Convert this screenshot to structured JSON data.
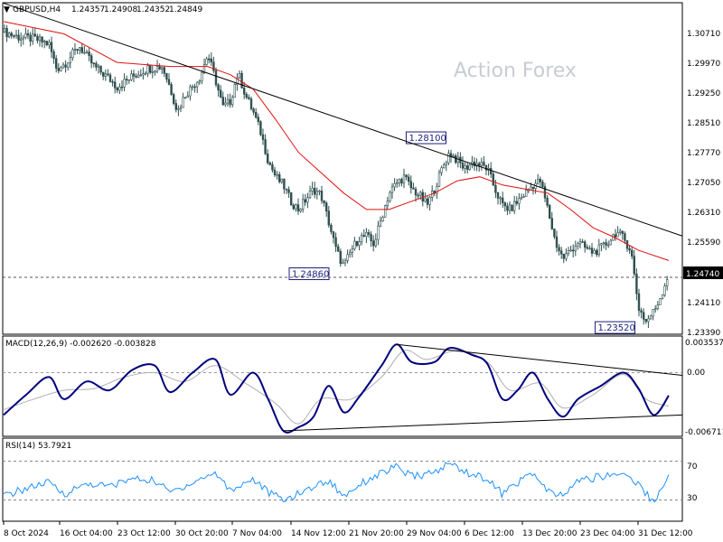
{
  "header": {
    "symbol": "GBPUSD,H4",
    "open": "1.24357",
    "high": "1.24908",
    "low": "1.24352",
    "close": "1.24849"
  },
  "watermark": "Action Forex",
  "colors": {
    "candles": "#2f4f4f",
    "ma": "#e01010",
    "macd_main": "#000080",
    "macd_signal": "#b0b0b0",
    "rsi": "#1e90ff",
    "trendline": "#000000",
    "label_border": "#1b1f7a"
  },
  "chart_data": [
    {
      "type": "candlestick",
      "name": "price",
      "y_ticks": [
        "1.30710",
        "1.29970",
        "1.29250",
        "1.28510",
        "1.27770",
        "1.27050",
        "1.26310",
        "1.25590",
        "1.24740",
        "1.24110",
        "1.23390"
      ],
      "ylim": [
        1.2339,
        1.3108
      ],
      "current_price": "1.24740",
      "annotations": [
        {
          "label": "1.28100",
          "x": "6 Dec 2024",
          "y": 1.281
        },
        {
          "label": "1.24860",
          "x": "21 Nov 2024",
          "y": 1.2486
        },
        {
          "label": "1.23520",
          "x": "31 Dec 2024",
          "y": 1.2352
        }
      ],
      "close_path": [
        [
          "8 Oct 2024",
          1.3075
        ],
        [
          "10 Oct 2024",
          1.3062
        ],
        [
          "12 Oct 2024",
          1.3058
        ],
        [
          "14 Oct 2024",
          1.3045
        ],
        [
          "15 Oct 2024",
          1.2985
        ],
        [
          "16 Oct 2024",
          1.2995
        ],
        [
          "18 Oct 2024",
          1.304
        ],
        [
          "20 Oct 2024",
          1.299
        ],
        [
          "22 Oct 2024",
          1.296
        ],
        [
          "23 Oct 2024",
          1.294
        ],
        [
          "25 Oct 2024",
          1.2965
        ],
        [
          "27 Oct 2024",
          1.2985
        ],
        [
          "29 Oct 2024",
          1.299
        ],
        [
          "30 Oct 2024",
          1.294
        ],
        [
          "31 Oct 2024",
          1.288
        ],
        [
          "1 Nov 2024",
          1.292
        ],
        [
          "3 Nov 2024",
          1.2965
        ],
        [
          "4 Nov 2024",
          1.302
        ],
        [
          "5 Nov 2024",
          1.296
        ],
        [
          "6 Nov 2024",
          1.289
        ],
        [
          "7 Nov 2024",
          1.2905
        ],
        [
          "8 Nov 2024",
          1.2975
        ],
        [
          "9 Nov 2024",
          1.292
        ],
        [
          "10 Nov 2024",
          1.288
        ],
        [
          "11 Nov 2024",
          1.283
        ],
        [
          "12 Nov 2024",
          1.276
        ],
        [
          "13 Nov 2024",
          1.272
        ],
        [
          "14 Nov 2024",
          1.27
        ],
        [
          "15 Nov 2024",
          1.266
        ],
        [
          "16 Nov 2024",
          1.264
        ],
        [
          "17 Nov 2024",
          1.2665
        ],
        [
          "18 Nov 2024",
          1.269
        ],
        [
          "19 Nov 2024",
          1.2675
        ],
        [
          "20 Nov 2024",
          1.261
        ],
        [
          "21 Nov 2024",
          1.254
        ],
        [
          "22 Nov 2024",
          1.25
        ],
        [
          "23 Nov 2024",
          1.254
        ],
        [
          "24 Nov 2024",
          1.257
        ],
        [
          "25 Nov 2024",
          1.2575
        ],
        [
          "26 Nov 2024",
          1.2555
        ],
        [
          "27 Nov 2024",
          1.262
        ],
        [
          "28 Nov 2024",
          1.268
        ],
        [
          "29 Nov 2024",
          1.2705
        ],
        [
          "30 Nov 2024",
          1.272
        ],
        [
          "1 Dec 2024",
          1.269
        ],
        [
          "2 Dec 2024",
          1.2675
        ],
        [
          "3 Dec 2024",
          1.265
        ],
        [
          "4 Dec 2024",
          1.269
        ],
        [
          "5 Dec 2024",
          1.274
        ],
        [
          "6 Dec 2024",
          1.278
        ],
        [
          "7 Dec 2024",
          1.276
        ],
        [
          "8 Dec 2024",
          1.274
        ],
        [
          "9 Dec 2024",
          1.2755
        ],
        [
          "10 Dec 2024",
          1.275
        ],
        [
          "11 Dec 2024",
          1.274
        ],
        [
          "12 Dec 2024",
          1.269
        ],
        [
          "13 Dec 2024",
          1.265
        ],
        [
          "14 Dec 2024",
          1.264
        ],
        [
          "15 Dec 2024",
          1.266
        ],
        [
          "16 Dec 2024",
          1.268
        ],
        [
          "17 Dec 2024",
          1.27
        ],
        [
          "18 Dec 2024",
          1.271
        ],
        [
          "19 Dec 2024",
          1.264
        ],
        [
          "20 Dec 2024",
          1.256
        ],
        [
          "21 Dec 2024",
          1.252
        ],
        [
          "22 Dec 2024",
          1.254
        ],
        [
          "23 Dec 2024",
          1.256
        ],
        [
          "24 Dec 2024",
          1.2545
        ],
        [
          "25 Dec 2024",
          1.2535
        ],
        [
          "26 Dec 2024",
          1.2545
        ],
        [
          "27 Dec 2024",
          1.256
        ],
        [
          "28 Dec 2024",
          1.2585
        ],
        [
          "29 Dec 2024",
          1.257
        ],
        [
          "30 Dec 2024",
          1.254
        ],
        [
          "31 Dec 2024",
          1.24
        ],
        [
          "1 Jan 2025",
          1.2365
        ],
        [
          "2 Jan 2025",
          1.239
        ],
        [
          "3 Jan 2025",
          1.243
        ],
        [
          "4 Jan 2025",
          1.2485
        ]
      ],
      "ma_path": [
        [
          "8 Oct 2024",
          1.31
        ],
        [
          "16 Oct 2024",
          1.307
        ],
        [
          "23 Oct 2024",
          1.3
        ],
        [
          "30 Oct 2024",
          1.299
        ],
        [
          "4 Nov 2024",
          1.299
        ],
        [
          "7 Nov 2024",
          1.297
        ],
        [
          "10 Nov 2024",
          1.2935
        ],
        [
          "13 Nov 2024",
          1.286
        ],
        [
          "16 Nov 2024",
          1.278
        ],
        [
          "19 Nov 2024",
          1.273
        ],
        [
          "22 Nov 2024",
          1.268
        ],
        [
          "25 Nov 2024",
          1.264
        ],
        [
          "28 Nov 2024",
          1.264
        ],
        [
          "1 Dec 2024",
          1.266
        ],
        [
          "4 Dec 2024",
          1.268
        ],
        [
          "7 Dec 2024",
          1.271
        ],
        [
          "10 Dec 2024",
          1.272
        ],
        [
          "13 Dec 2024",
          1.27
        ],
        [
          "16 Dec 2024",
          1.269
        ],
        [
          "19 Dec 2024",
          1.268
        ],
        [
          "22 Dec 2024",
          1.264
        ],
        [
          "25 Dec 2024",
          1.2595
        ],
        [
          "28 Dec 2024",
          1.257
        ],
        [
          "31 Dec 2024",
          1.254
        ],
        [
          "4 Jan 2025",
          1.2515
        ]
      ],
      "trendline": [
        [
          "8 Oct 2024",
          1.3145
        ],
        [
          "4 Jan 2025",
          1.2575
        ]
      ]
    },
    {
      "type": "line",
      "name": "MACD(12,26,9)",
      "label": "MACD(12,26,9) -0.002620 -0.003828",
      "y_ticks": [
        "0.003537",
        "0.00",
        "-0.006711"
      ],
      "ylim": [
        -0.006711,
        0.003537
      ],
      "series": [
        {
          "role": "main",
          "points": [
            [
              "8 Oct 2024",
              -0.0048
            ],
            [
              "11 Oct 2024",
              -0.0025
            ],
            [
              "14 Oct 2024",
              -0.0005
            ],
            [
              "16 Oct 2024",
              -0.003
            ],
            [
              "19 Oct 2024",
              -0.001
            ],
            [
              "22 Oct 2024",
              -0.002
            ],
            [
              "25 Oct 2024",
              0.0003
            ],
            [
              "28 Oct 2024",
              0.0008
            ],
            [
              "30 Oct 2024",
              -0.0022
            ],
            [
              "2 Nov 2024",
              0.0
            ],
            [
              "5 Nov 2024",
              0.0015
            ],
            [
              "7 Nov 2024",
              -0.0025
            ],
            [
              "10 Nov 2024",
              0.0
            ],
            [
              "12 Nov 2024",
              -0.003
            ],
            [
              "14 Nov 2024",
              -0.0066
            ],
            [
              "16 Nov 2024",
              -0.0062
            ],
            [
              "18 Nov 2024",
              -0.005
            ],
            [
              "20 Nov 2024",
              -0.0015
            ],
            [
              "22 Nov 2024",
              -0.0045
            ],
            [
              "24 Nov 2024",
              -0.0028
            ],
            [
              "27 Nov 2024",
              0.0008
            ],
            [
              "29 Nov 2024",
              0.0032
            ],
            [
              "1 Dec 2024",
              0.0012
            ],
            [
              "4 Dec 2024",
              0.0012
            ],
            [
              "6 Dec 2024",
              0.0028
            ],
            [
              "9 Dec 2024",
              0.002
            ],
            [
              "11 Dec 2024",
              0.001
            ],
            [
              "13 Dec 2024",
              -0.003
            ],
            [
              "15 Dec 2024",
              -0.002
            ],
            [
              "17 Dec 2024",
              0.0
            ],
            [
              "19 Dec 2024",
              -0.003
            ],
            [
              "21 Dec 2024",
              -0.005
            ],
            [
              "23 Dec 2024",
              -0.003
            ],
            [
              "26 Dec 2024",
              -0.0015
            ],
            [
              "29 Dec 2024",
              0.0
            ],
            [
              "31 Dec 2024",
              -0.0018
            ],
            [
              "2 Jan 2025",
              -0.0048
            ],
            [
              "4 Jan 2025",
              -0.0026
            ]
          ]
        },
        {
          "role": "signal",
          "points": [
            [
              "8 Oct 2024",
              -0.0042
            ],
            [
              "12 Oct 2024",
              -0.003
            ],
            [
              "16 Oct 2024",
              -0.002
            ],
            [
              "20 Oct 2024",
              -0.0018
            ],
            [
              "24 Oct 2024",
              -0.0005
            ],
            [
              "28 Oct 2024",
              0.0
            ],
            [
              "1 Nov 2024",
              -0.001
            ],
            [
              "5 Nov 2024",
              0.0008
            ],
            [
              "9 Nov 2024",
              -0.0012
            ],
            [
              "13 Nov 2024",
              -0.0035
            ],
            [
              "16 Nov 2024",
              -0.0058
            ],
            [
              "19 Nov 2024",
              -0.003
            ],
            [
              "23 Nov 2024",
              -0.003
            ],
            [
              "27 Nov 2024",
              -0.0005
            ],
            [
              "30 Nov 2024",
              0.0025
            ],
            [
              "3 Dec 2024",
              0.0015
            ],
            [
              "7 Dec 2024",
              0.0025
            ],
            [
              "11 Dec 2024",
              0.0012
            ],
            [
              "14 Dec 2024",
              -0.002
            ],
            [
              "18 Dec 2024",
              -0.0012
            ],
            [
              "21 Dec 2024",
              -0.004
            ],
            [
              "25 Dec 2024",
              -0.0025
            ],
            [
              "29 Dec 2024",
              -0.0002
            ],
            [
              "1 Jan 2025",
              -0.003
            ],
            [
              "4 Jan 2025",
              -0.0038
            ]
          ]
        }
      ],
      "trendlines": [
        [
          [
            "29 Nov 2024",
            0.0032
          ],
          [
            "4 Jan 2025",
            -0.0003
          ]
        ],
        [
          [
            "14 Nov 2024",
            -0.0066
          ],
          [
            "4 Jan 2025",
            -0.0048
          ]
        ]
      ]
    },
    {
      "type": "line",
      "name": "RSI(14)",
      "label": "RSI(14) 53.7921",
      "y_ticks": [
        "70",
        "30"
      ],
      "ylim": [
        10,
        90
      ],
      "levels": [
        70,
        30
      ],
      "points": [
        [
          "8 Oct 2024",
          34
        ],
        [
          "11 Oct 2024",
          42
        ],
        [
          "14 Oct 2024",
          48
        ],
        [
          "16 Oct 2024",
          36
        ],
        [
          "19 Oct 2024",
          47
        ],
        [
          "22 Oct 2024",
          44
        ],
        [
          "25 Oct 2024",
          52
        ],
        [
          "28 Oct 2024",
          50
        ],
        [
          "30 Oct 2024",
          38
        ],
        [
          "2 Nov 2024",
          48
        ],
        [
          "5 Nov 2024",
          58
        ],
        [
          "7 Nov 2024",
          40
        ],
        [
          "10 Nov 2024",
          52
        ],
        [
          "12 Nov 2024",
          38
        ],
        [
          "14 Nov 2024",
          30
        ],
        [
          "16 Nov 2024",
          36
        ],
        [
          "18 Nov 2024",
          44
        ],
        [
          "20 Nov 2024",
          50
        ],
        [
          "22 Nov 2024",
          34
        ],
        [
          "24 Nov 2024",
          46
        ],
        [
          "27 Nov 2024",
          58
        ],
        [
          "29 Nov 2024",
          64
        ],
        [
          "1 Dec 2024",
          54
        ],
        [
          "4 Dec 2024",
          58
        ],
        [
          "6 Dec 2024",
          68
        ],
        [
          "9 Dec 2024",
          56
        ],
        [
          "11 Dec 2024",
          52
        ],
        [
          "13 Dec 2024",
          36
        ],
        [
          "15 Dec 2024",
          48
        ],
        [
          "17 Dec 2024",
          58
        ],
        [
          "19 Dec 2024",
          38
        ],
        [
          "21 Dec 2024",
          34
        ],
        [
          "23 Dec 2024",
          50
        ],
        [
          "26 Dec 2024",
          54
        ],
        [
          "29 Dec 2024",
          58
        ],
        [
          "31 Dec 2024",
          46
        ],
        [
          "2 Jan 2025",
          28
        ],
        [
          "4 Jan 2025",
          54
        ]
      ]
    }
  ],
  "x_axis": {
    "labels": [
      "8 Oct 2024",
      "16 Oct 04:00",
      "23 Oct 12:00",
      "30 Oct 20:00",
      "7 Nov 04:00",
      "14 Nov 12:00",
      "21 Nov 20:00",
      "29 Nov 04:00",
      "6 Dec 12:00",
      "13 Dec 20:00",
      "23 Dec 04:00",
      "31 Dec 12:00"
    ],
    "range": [
      "8 Oct 2024",
      "4 Jan 2025"
    ]
  }
}
